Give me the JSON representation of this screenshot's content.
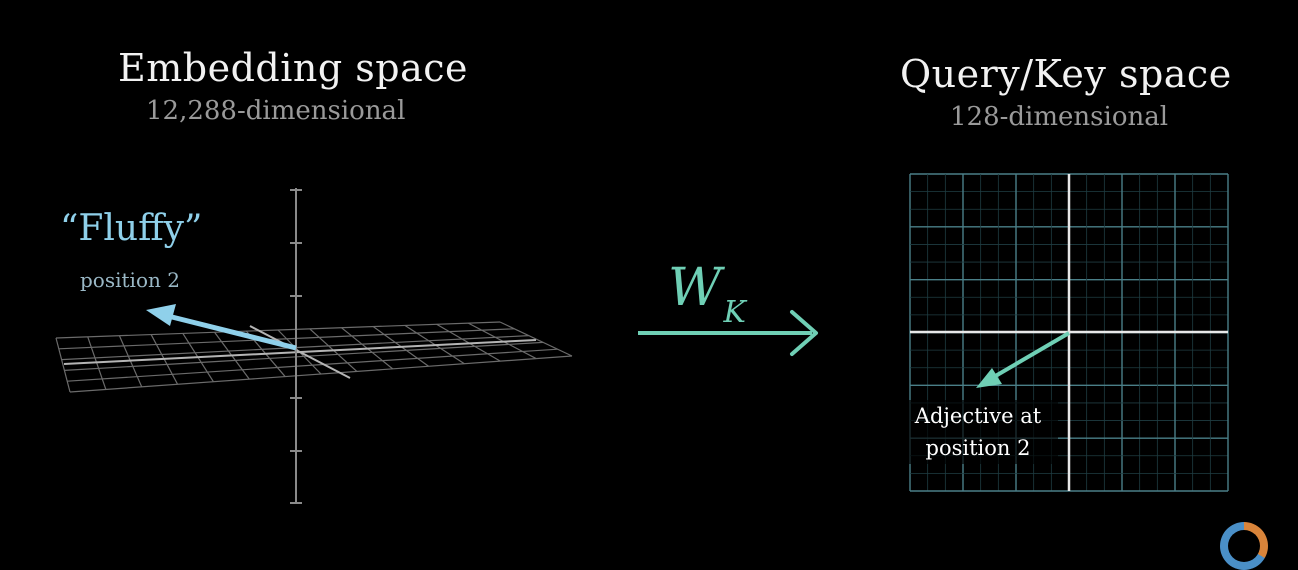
{
  "embedding_space": {
    "title": "Embedding space",
    "subtitle": "12,288-dimensional",
    "vector_word": "“Fluffy”",
    "vector_position": "position 2",
    "vector_color": "#8fd0ea"
  },
  "transform": {
    "symbol": "W",
    "subscript": "K",
    "color": "#6fcfb5"
  },
  "query_key_space": {
    "title": "Query/Key space",
    "subtitle": "128-dimensional",
    "vector_label_line1": "Adjective at",
    "vector_label_line2": "position 2",
    "vector_color": "#6fcfb5",
    "grid_color": "#3f6f78"
  },
  "icons": {
    "loading": "loading-spinner-icon"
  }
}
